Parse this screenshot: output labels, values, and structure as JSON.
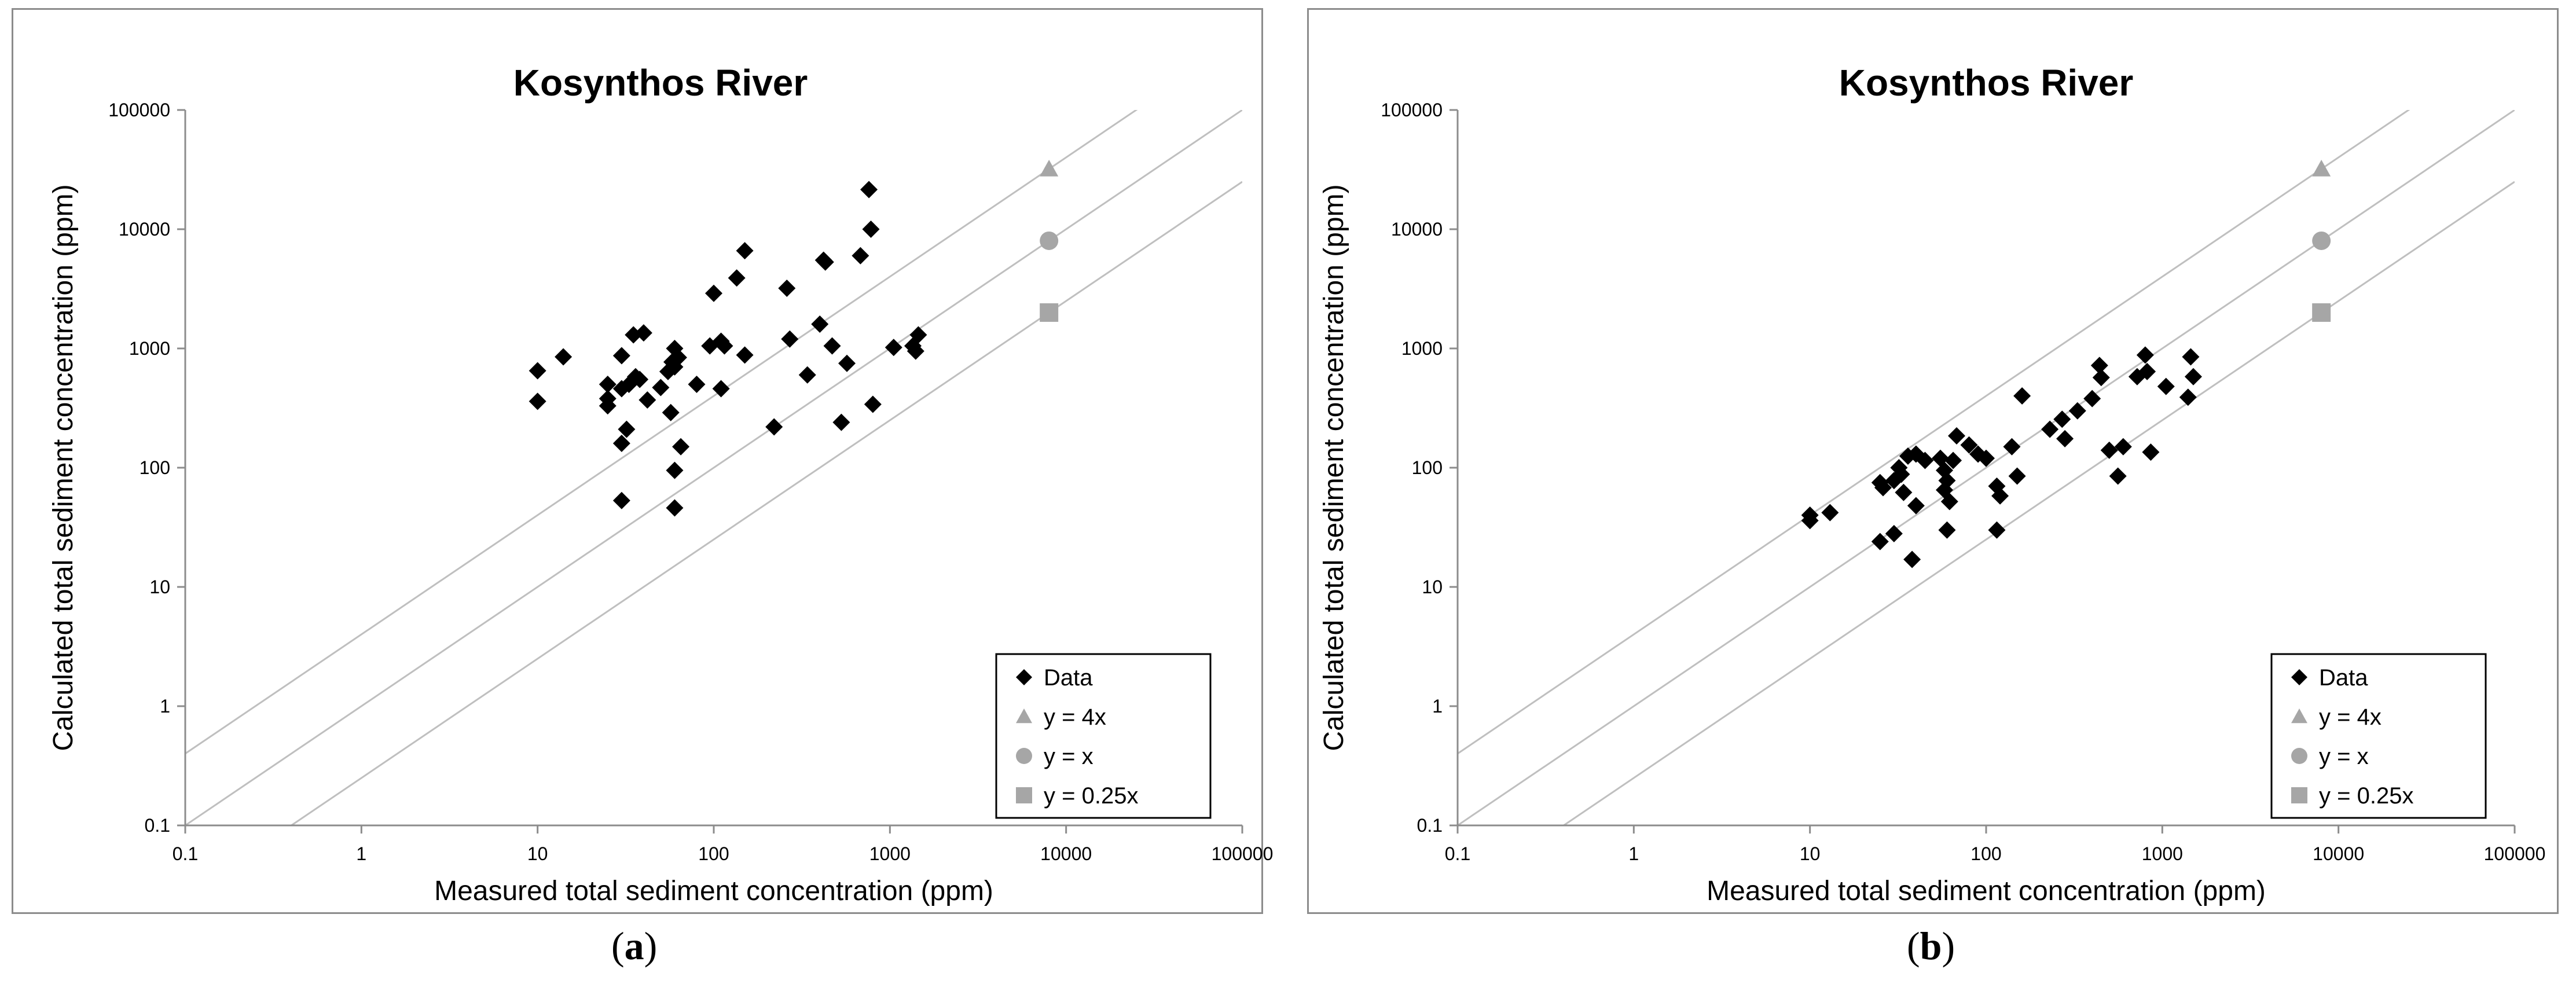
{
  "panels": [
    {
      "label_open": "(",
      "label_letter": "a",
      "label_close": ")"
    },
    {
      "label_open": "(",
      "label_letter": "b",
      "label_close": ")"
    }
  ],
  "chart_data": [
    {
      "type": "scatter",
      "title": "Kosynthos River",
      "xlabel": "Measured total sediment concentration (ppm)",
      "ylabel": "Calculated total sediment concentration (ppm)",
      "xscale": "log",
      "yscale": "log",
      "xlim": [
        0.1,
        100000
      ],
      "ylim": [
        0.1,
        100000
      ],
      "x_ticks": [
        "0.1",
        "1",
        "10",
        "100",
        "1000",
        "10000",
        "100000"
      ],
      "y_ticks": [
        "0.1",
        "1",
        "10",
        "100",
        "1000",
        "10000",
        "100000"
      ],
      "grid": false,
      "legend_position": "bottom-right",
      "colors": {
        "data": "#000000",
        "reference": "#a6a6a6",
        "reference_line": "#bfbfbf",
        "frame": "#8c8c8c"
      },
      "reference_lines": [
        {
          "name": "y = 4x",
          "factor": 4,
          "marker": "triangle"
        },
        {
          "name": "y = x",
          "factor": 1,
          "marker": "circle"
        },
        {
          "name": "y = 0.25x",
          "factor": 0.25,
          "marker": "square"
        }
      ],
      "reference_markers": [
        {
          "name": "y = 4x",
          "x": 8000,
          "y": 32000,
          "marker": "triangle"
        },
        {
          "name": "y = x",
          "x": 8000,
          "y": 8000,
          "marker": "circle"
        },
        {
          "name": "y = 0.25x",
          "x": 8000,
          "y": 2000,
          "marker": "square"
        }
      ],
      "legend": [
        {
          "label": "Data",
          "marker": "diamond"
        },
        {
          "label": "y = 4x",
          "marker": "triangle"
        },
        {
          "label": "y = x",
          "marker": "circle"
        },
        {
          "label": "y = 0.25x",
          "marker": "square"
        }
      ],
      "series": [
        {
          "name": "Data",
          "marker": "diamond",
          "points": [
            [
              10,
              650
            ],
            [
              10,
              360
            ],
            [
              14,
              850
            ],
            [
              25,
              500
            ],
            [
              25,
              380
            ],
            [
              25,
              330
            ],
            [
              30,
              870
            ],
            [
              30,
              460
            ],
            [
              30,
              160
            ],
            [
              30,
              53
            ],
            [
              32,
              210
            ],
            [
              33,
              500
            ],
            [
              35,
              1300
            ],
            [
              36,
              580
            ],
            [
              38,
              550
            ],
            [
              40,
              1350
            ],
            [
              42,
              370
            ],
            [
              50,
              470
            ],
            [
              55,
              640
            ],
            [
              57,
              290
            ],
            [
              58,
              770
            ],
            [
              60,
              700
            ],
            [
              60,
              1000
            ],
            [
              60,
              95
            ],
            [
              60,
              46
            ],
            [
              63,
              840
            ],
            [
              65,
              150
            ],
            [
              80,
              500
            ],
            [
              95,
              1050
            ],
            [
              100,
              2900
            ],
            [
              110,
              1150
            ],
            [
              110,
              460
            ],
            [
              115,
              1050
            ],
            [
              135,
              3900
            ],
            [
              150,
              6600
            ],
            [
              150,
              880
            ],
            [
              220,
              220
            ],
            [
              260,
              3200
            ],
            [
              270,
              1200
            ],
            [
              340,
              600
            ],
            [
              400,
              1600
            ],
            [
              420,
              5500
            ],
            [
              430,
              5300
            ],
            [
              470,
              1050
            ],
            [
              530,
              240
            ],
            [
              570,
              750
            ],
            [
              680,
              6000
            ],
            [
              760,
              21500
            ],
            [
              780,
              10000
            ],
            [
              800,
              340
            ],
            [
              1050,
              1020
            ],
            [
              1350,
              1050
            ],
            [
              1400,
              950
            ],
            [
              1450,
              1300
            ]
          ]
        }
      ]
    },
    {
      "type": "scatter",
      "title": "Kosynthos River",
      "xlabel": "Measured total sediment concentration (ppm)",
      "ylabel": "Calculated total sediment concentration (ppm)",
      "xscale": "log",
      "yscale": "log",
      "xlim": [
        0.1,
        100000
      ],
      "ylim": [
        0.1,
        100000
      ],
      "x_ticks": [
        "0.1",
        "1",
        "10",
        "100",
        "1000",
        "10000",
        "100000"
      ],
      "y_ticks": [
        "0.1",
        "1",
        "10",
        "100",
        "1000",
        "10000",
        "100000"
      ],
      "grid": false,
      "legend_position": "bottom-right",
      "colors": {
        "data": "#000000",
        "reference": "#a6a6a6",
        "reference_line": "#bfbfbf",
        "frame": "#8c8c8c"
      },
      "reference_lines": [
        {
          "name": "y = 4x",
          "factor": 4,
          "marker": "triangle"
        },
        {
          "name": "y = x",
          "factor": 1,
          "marker": "circle"
        },
        {
          "name": "y = 0.25x",
          "factor": 0.25,
          "marker": "square"
        }
      ],
      "reference_markers": [
        {
          "name": "y = 4x",
          "x": 8000,
          "y": 32000,
          "marker": "triangle"
        },
        {
          "name": "y = x",
          "x": 8000,
          "y": 8000,
          "marker": "circle"
        },
        {
          "name": "y = 0.25x",
          "x": 8000,
          "y": 2000,
          "marker": "square"
        }
      ],
      "legend": [
        {
          "label": "Data",
          "marker": "diamond"
        },
        {
          "label": "y = 4x",
          "marker": "triangle"
        },
        {
          "label": "y = x",
          "marker": "circle"
        },
        {
          "label": "y = 0.25x",
          "marker": "square"
        }
      ],
      "series": [
        {
          "name": "Data",
          "marker": "diamond",
          "points": [
            [
              10,
              40
            ],
            [
              10,
              36
            ],
            [
              13,
              42
            ],
            [
              25,
              24
            ],
            [
              25,
              75
            ],
            [
              26,
              68
            ],
            [
              30,
              78
            ],
            [
              30,
              28
            ],
            [
              32,
              100
            ],
            [
              33,
              88
            ],
            [
              34,
              62
            ],
            [
              36,
              125
            ],
            [
              38,
              17
            ],
            [
              40,
              48
            ],
            [
              40,
              130
            ],
            [
              45,
              115
            ],
            [
              55,
              120
            ],
            [
              58,
              95
            ],
            [
              58,
              65
            ],
            [
              60,
              78
            ],
            [
              60,
              30
            ],
            [
              62,
              52
            ],
            [
              65,
              115
            ],
            [
              68,
              185
            ],
            [
              80,
              155
            ],
            [
              90,
              130
            ],
            [
              100,
              120
            ],
            [
              115,
              70
            ],
            [
              115,
              30
            ],
            [
              120,
              58
            ],
            [
              140,
              150
            ],
            [
              150,
              85
            ],
            [
              160,
              400
            ],
            [
              230,
              210
            ],
            [
              270,
              255
            ],
            [
              280,
              175
            ],
            [
              330,
              300
            ],
            [
              400,
              380
            ],
            [
              440,
              720
            ],
            [
              450,
              570
            ],
            [
              500,
              140
            ],
            [
              560,
              85
            ],
            [
              600,
              150
            ],
            [
              720,
              580
            ],
            [
              800,
              880
            ],
            [
              820,
              640
            ],
            [
              860,
              135
            ],
            [
              1050,
              480
            ],
            [
              1400,
              390
            ],
            [
              1450,
              850
            ],
            [
              1500,
              580
            ]
          ]
        }
      ]
    }
  ]
}
